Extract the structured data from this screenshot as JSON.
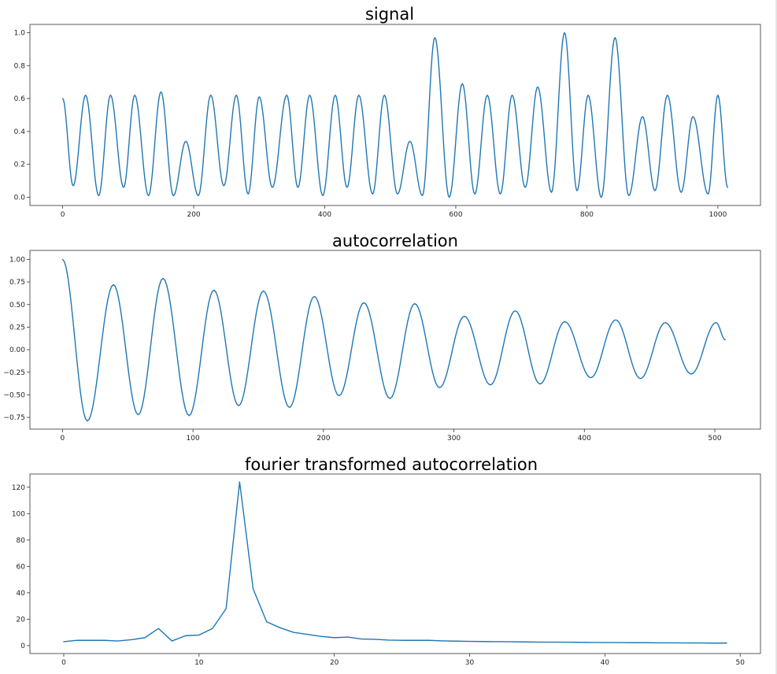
{
  "chart_data": [
    {
      "id": "signal",
      "type": "line",
      "title": "signal",
      "xlabel": "",
      "ylabel": "",
      "xlim": [
        -50,
        1065
      ],
      "ylim": [
        -0.05,
        1.05
      ],
      "xticks": [
        0,
        200,
        400,
        600,
        800,
        1000
      ],
      "yticks": [
        0.0,
        0.2,
        0.4,
        0.6,
        0.8,
        1.0
      ],
      "xtick_labels": [
        "0",
        "200",
        "400",
        "600",
        "800",
        "1000"
      ],
      "ytick_labels": [
        "0.0",
        "0.2",
        "0.4",
        "0.6",
        "0.8",
        "1.0"
      ],
      "grid": false,
      "series": [
        {
          "color": "#1f77b4",
          "x_range": [
            0,
            1015
          ],
          "mean": 0.31,
          "peaks": [
            [
              35,
              0.62
            ],
            [
              73,
              0.62
            ],
            [
              110,
              0.62
            ],
            [
              150,
              0.64
            ],
            [
              188,
              0.34
            ],
            [
              226,
              0.62
            ],
            [
              265,
              0.62
            ],
            [
              300,
              0.61
            ],
            [
              342,
              0.62
            ],
            [
              377,
              0.62
            ],
            [
              416,
              0.62
            ],
            [
              452,
              0.62
            ],
            [
              491,
              0.62
            ],
            [
              530,
              0.34
            ],
            [
              568,
              0.97
            ],
            [
              610,
              0.69
            ],
            [
              648,
              0.62
            ],
            [
              686,
              0.62
            ],
            [
              725,
              0.67
            ],
            [
              766,
              1.0
            ],
            [
              802,
              0.62
            ],
            [
              843,
              0.97
            ],
            [
              885,
              0.49
            ],
            [
              923,
              0.62
            ],
            [
              962,
              0.49
            ],
            [
              1000,
              0.62
            ]
          ],
          "troughs": [
            [
              0,
              0.6
            ],
            [
              16,
              0.07
            ],
            [
              55,
              0.01
            ],
            [
              93,
              0.06
            ],
            [
              131,
              0.01
            ],
            [
              169,
              0.01
            ],
            [
              207,
              0.01
            ],
            [
              246,
              0.07
            ],
            [
              283,
              0.02
            ],
            [
              320,
              0.06
            ],
            [
              359,
              0.06
            ],
            [
              397,
              0.01
            ],
            [
              434,
              0.06
            ],
            [
              473,
              0.02
            ],
            [
              511,
              0.02
            ],
            [
              549,
              0.01
            ],
            [
              590,
              0.0
            ],
            [
              629,
              0.02
            ],
            [
              668,
              0.02
            ],
            [
              706,
              0.06
            ],
            [
              746,
              0.03
            ],
            [
              785,
              0.04
            ],
            [
              822,
              0.0
            ],
            [
              864,
              0.01
            ],
            [
              904,
              0.04
            ],
            [
              944,
              0.03
            ],
            [
              985,
              0.02
            ],
            [
              1015,
              0.06
            ]
          ]
        }
      ]
    },
    {
      "id": "autocorrelation",
      "type": "line",
      "title": "autocorrelation",
      "xlabel": "",
      "ylabel": "",
      "xlim": [
        -25,
        535
      ],
      "ylim": [
        -0.88,
        1.1
      ],
      "xticks": [
        0,
        100,
        200,
        300,
        400,
        500
      ],
      "yticks": [
        -0.75,
        -0.5,
        -0.25,
        0.0,
        0.25,
        0.5,
        0.75,
        1.0
      ],
      "xtick_labels": [
        "0",
        "100",
        "200",
        "300",
        "400",
        "500"
      ],
      "ytick_labels": [
        "−0.75",
        "−0.50",
        "−0.25",
        "0.00",
        "0.25",
        "0.50",
        "0.75",
        "1.00"
      ],
      "grid": false,
      "series": [
        {
          "color": "#1f77b4",
          "x_range": [
            0,
            508
          ],
          "peaks": [
            [
              0,
              1.0
            ],
            [
              39,
              0.72
            ],
            [
              77,
              0.79
            ],
            [
              116,
              0.66
            ],
            [
              154,
              0.65
            ],
            [
              193,
              0.59
            ],
            [
              231,
              0.52
            ],
            [
              270,
              0.51
            ],
            [
              308,
              0.37
            ],
            [
              347,
              0.43
            ],
            [
              385,
              0.31
            ],
            [
              424,
              0.33
            ],
            [
              462,
              0.3
            ],
            [
              501,
              0.3
            ]
          ],
          "troughs": [
            [
              19,
              -0.79
            ],
            [
              58,
              -0.72
            ],
            [
              97,
              -0.73
            ],
            [
              135,
              -0.62
            ],
            [
              174,
              -0.64
            ],
            [
              212,
              -0.51
            ],
            [
              251,
              -0.54
            ],
            [
              289,
              -0.42
            ],
            [
              328,
              -0.39
            ],
            [
              366,
              -0.38
            ],
            [
              405,
              -0.31
            ],
            [
              443,
              -0.32
            ],
            [
              482,
              -0.27
            ]
          ],
          "end_point": [
            508,
            0.11
          ]
        }
      ]
    },
    {
      "id": "fourier",
      "type": "line",
      "title": "fourier transformed autocorrelation",
      "xlabel": "",
      "ylabel": "",
      "xlim": [
        -2.5,
        51.5
      ],
      "ylim": [
        -6,
        130
      ],
      "xticks": [
        0,
        10,
        20,
        30,
        40,
        50
      ],
      "yticks": [
        0,
        20,
        40,
        60,
        80,
        100,
        120
      ],
      "xtick_labels": [
        "0",
        "10",
        "20",
        "30",
        "40",
        "50"
      ],
      "ytick_labels": [
        "0",
        "20",
        "40",
        "60",
        "80",
        "100",
        "120"
      ],
      "grid": false,
      "series": [
        {
          "color": "#1f77b4",
          "x": [
            0,
            1,
            2,
            3,
            4,
            5,
            6,
            7,
            8,
            9,
            10,
            11,
            12,
            13,
            14,
            15,
            16,
            17,
            18,
            19,
            20,
            21,
            22,
            23,
            24,
            25,
            26,
            27,
            28,
            29,
            30,
            31,
            32,
            33,
            34,
            35,
            36,
            37,
            38,
            39,
            40,
            41,
            42,
            43,
            44,
            45,
            46,
            47,
            48,
            49
          ],
          "y": [
            3,
            4,
            4,
            4,
            3.5,
            4.5,
            6,
            13,
            3.5,
            7.5,
            8,
            13,
            28,
            124,
            43,
            18,
            13.5,
            10,
            8.5,
            7,
            6,
            6.5,
            5,
            4.8,
            4.2,
            4,
            4,
            4,
            3.6,
            3.4,
            3.2,
            3.1,
            3,
            2.9,
            2.8,
            2.7,
            2.6,
            2.6,
            2.5,
            2.4,
            2.3,
            2.3,
            2.2,
            2.2,
            2.1,
            2.1,
            2,
            2,
            1.9,
            1.9
          ]
        }
      ]
    }
  ]
}
